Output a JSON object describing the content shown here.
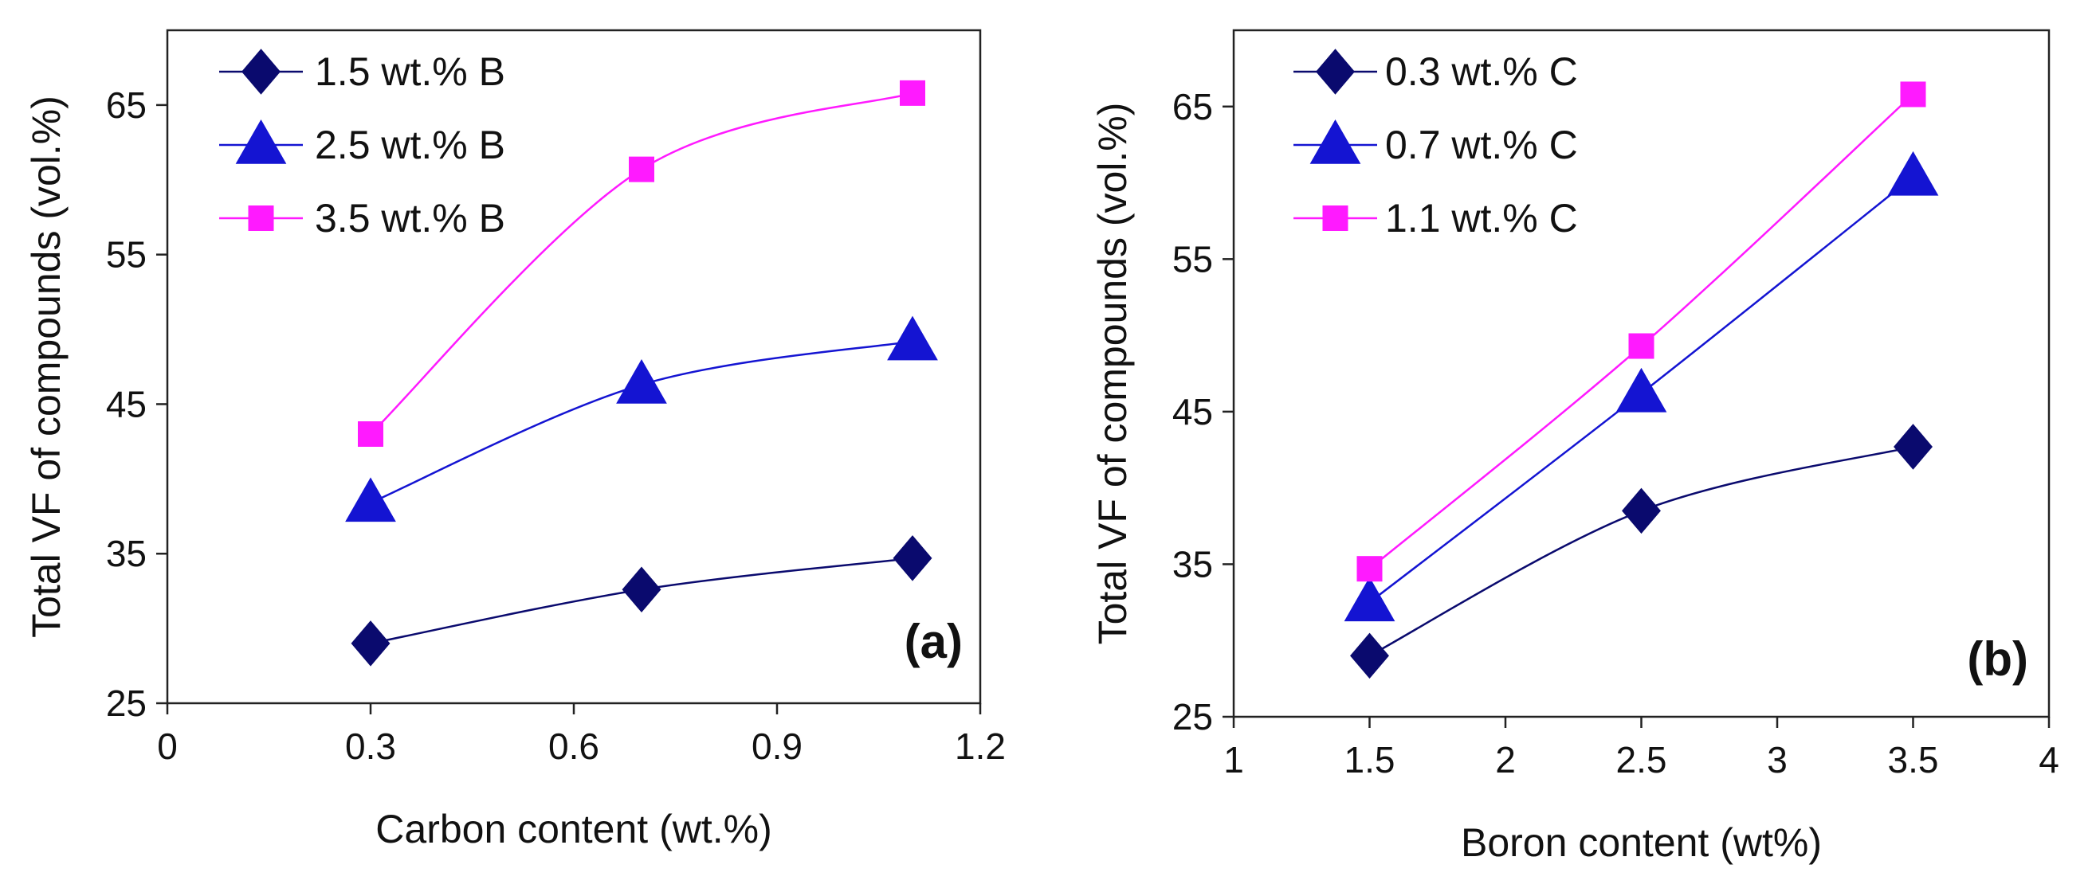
{
  "figure": {
    "background": "#ffffff"
  },
  "chart_data": [
    {
      "type": "line",
      "panel_label": "(a)",
      "xlabel": "Carbon content (wt.%)",
      "ylabel": "Total VF of compounds (vol.%)",
      "xlim": [
        0,
        1.2
      ],
      "ylim": [
        25,
        70
      ],
      "xticks": [
        0,
        0.3,
        0.6,
        0.9,
        1.2
      ],
      "xtick_labels": [
        "0",
        "0.3",
        "0.6",
        "0.9",
        "1.2"
      ],
      "yticks": [
        25,
        35,
        45,
        55,
        65
      ],
      "ytick_labels": [
        "25",
        "35",
        "45",
        "55",
        "65"
      ],
      "grid": false,
      "legend_position": "top-left",
      "series": [
        {
          "name": "1.5 wt.% B",
          "marker": "diamond",
          "color": "#0a0a6e",
          "x": [
            0.3,
            0.7,
            1.1
          ],
          "y": [
            29.0,
            32.6,
            34.7
          ]
        },
        {
          "name": "2.5 wt.% B",
          "marker": "triangle",
          "color": "#1414d2",
          "x": [
            0.3,
            0.7,
            1.1
          ],
          "y": [
            38.4,
            46.3,
            49.2
          ]
        },
        {
          "name": "3.5 wt.% B",
          "marker": "square",
          "color": "#ff1aff",
          "x": [
            0.3,
            0.7,
            1.1
          ],
          "y": [
            43.0,
            60.7,
            65.8
          ]
        }
      ]
    },
    {
      "type": "line",
      "panel_label": "(b)",
      "xlabel": "Boron content (wt%)",
      "ylabel": "Total VF of compounds (vol.%)",
      "xlim": [
        1,
        4
      ],
      "ylim": [
        25,
        70
      ],
      "xticks": [
        1,
        1.5,
        2,
        2.5,
        3,
        3.5,
        4
      ],
      "xtick_labels": [
        "1",
        "1.5",
        "2",
        "2.5",
        "3",
        "3.5",
        "4"
      ],
      "yticks": [
        25,
        35,
        45,
        55,
        65
      ],
      "ytick_labels": [
        "25",
        "35",
        "45",
        "55",
        "65"
      ],
      "grid": false,
      "legend_position": "top-left",
      "series": [
        {
          "name": "0.3 wt.% C",
          "marker": "diamond",
          "color": "#0a0a6e",
          "x": [
            1.5,
            2.5,
            3.5
          ],
          "y": [
            29.0,
            38.5,
            42.7
          ]
        },
        {
          "name": "0.7 wt.% C",
          "marker": "triangle",
          "color": "#1414d2",
          "x": [
            1.5,
            2.5,
            3.5
          ],
          "y": [
            32.5,
            46.2,
            60.4
          ]
        },
        {
          "name": "1.1 wt.% C",
          "marker": "square",
          "color": "#ff1aff",
          "x": [
            1.5,
            2.5,
            3.5
          ],
          "y": [
            34.7,
            49.3,
            65.8
          ]
        }
      ]
    }
  ]
}
